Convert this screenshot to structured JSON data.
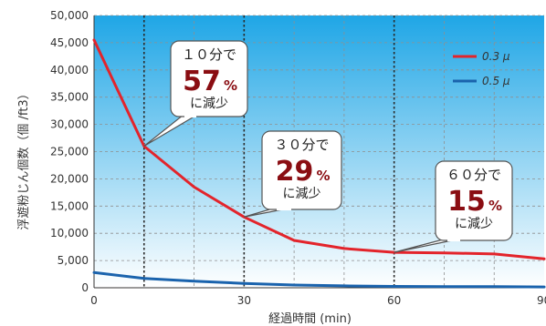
{
  "chart_data": {
    "type": "line",
    "xlabel": "経過時間 (min)",
    "ylabel": "浮遊粉じん個数（個 /ft3）",
    "xlim": [
      0,
      90
    ],
    "ylim": [
      0,
      50000
    ],
    "x_ticks": [
      0,
      30,
      60,
      90
    ],
    "y_ticks": [
      0,
      5000,
      10000,
      15000,
      20000,
      25000,
      30000,
      35000,
      40000,
      45000,
      50000
    ],
    "grid": true,
    "legend_position": "top-right",
    "series": [
      {
        "name": "0.3 μ",
        "color": "#e3242b",
        "x": [
          0,
          10,
          20,
          30,
          40,
          50,
          60,
          70,
          80,
          90
        ],
        "y": [
          45500,
          26000,
          18500,
          13000,
          8700,
          7200,
          6500,
          6400,
          6200,
          5300
        ]
      },
      {
        "name": "0.5 μ",
        "color": "#1a63ad",
        "x": [
          0,
          10,
          20,
          30,
          40,
          50,
          60,
          70,
          80,
          90
        ],
        "y": [
          2800,
          1700,
          1200,
          800,
          500,
          350,
          250,
          220,
          200,
          150
        ]
      }
    ],
    "reference_lines_x": [
      10,
      30,
      60
    ],
    "annotations": [
      {
        "line1": "１０分で",
        "value": "57",
        "unit": "%",
        "line3": "に減少",
        "x": 10,
        "y": 26000
      },
      {
        "line1": "３０分で",
        "value": "29",
        "unit": "%",
        "line3": "に減少",
        "x": 30,
        "y": 13000
      },
      {
        "line1": "６０分で",
        "value": "15",
        "unit": "%",
        "line3": "に減少",
        "x": 60,
        "y": 6500
      }
    ]
  },
  "colors": {
    "gradient_top": "#1fa6e6",
    "gradient_bottom": "#ffffff",
    "grid": "#8f8f8f",
    "reference_line": "#2a2a2a"
  }
}
